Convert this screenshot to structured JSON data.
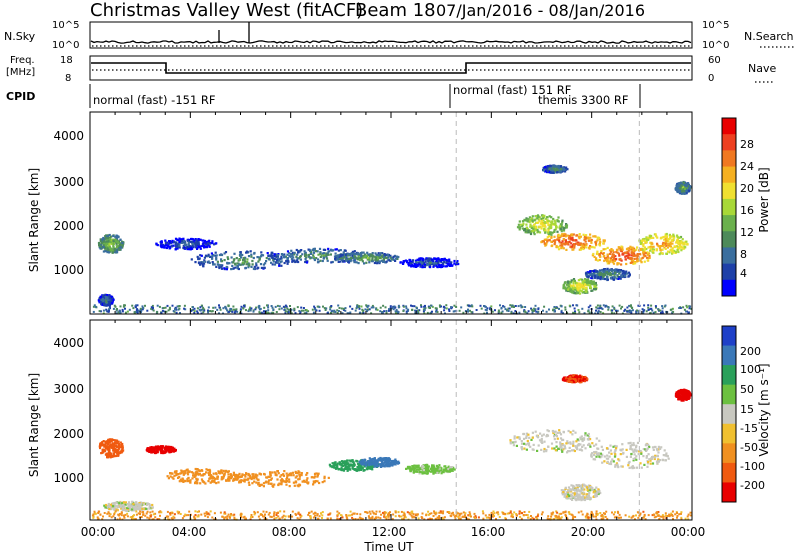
{
  "header": {
    "title": "Christmas Valley West (fitACF)",
    "beam": "Beam 18",
    "date_range": "07/Jan/2016 - 08/Jan/2016"
  },
  "noise_panel": {
    "left_label": "N.Sky",
    "left_ticks": [
      "10^5",
      "10^0"
    ],
    "right_label": "N.Search",
    "right_ticks": [
      "10^5",
      "10^0"
    ]
  },
  "freq_panel": {
    "left_label_line1": "Freq.",
    "left_label_line2": "[MHz]",
    "left_ticks": [
      "18",
      "8"
    ],
    "right_label": "Nave",
    "right_ticks": [
      "60",
      "0"
    ]
  },
  "cpid": {
    "label": "CPID",
    "segments": [
      {
        "start": 0.0,
        "end": 14.6,
        "text": "normal (fast) -151 RF"
      },
      {
        "start": 14.6,
        "end": 21.9,
        "text": "normal (fast) 151 RF"
      },
      {
        "start": 14.6,
        "end": 21.9,
        "text": "themis 3300 RF"
      }
    ]
  },
  "xaxis": {
    "label": "Time UT",
    "ticks": [
      "00:00",
      "04:00",
      "08:00",
      "12:00",
      "16:00",
      "20:00",
      "00:00"
    ]
  },
  "yaxis": {
    "label": "Slant Range [km]",
    "ticks": [
      "1000",
      "2000",
      "3000",
      "4000"
    ]
  },
  "power_scale": {
    "label": "Power [dB]",
    "ticks": [
      "4",
      "8",
      "12",
      "16",
      "20",
      "24",
      "28"
    ],
    "colors": [
      "#0000ff",
      "#1e40a8",
      "#3a6e9e",
      "#4d8a5a",
      "#6ab04c",
      "#a8d838",
      "#f0e030",
      "#f5b020",
      "#f07820",
      "#ee4020",
      "#e80000"
    ]
  },
  "velocity_scale": {
    "label": "Velocity [m s⁻¹]",
    "ticks": [
      "200",
      "100",
      "50",
      "15",
      "-15",
      "-50",
      "-100",
      "-200"
    ],
    "colors": [
      "#1e40c8",
      "#3a78b8",
      "#2aa05a",
      "#6cc040",
      "#c8c8c0",
      "#f0c030",
      "#f09020",
      "#f05a10",
      "#e80000"
    ]
  },
  "chart_data": {
    "type": "heatmap",
    "x_range_hours": [
      0,
      24
    ],
    "y_range_km": [
      180,
      4500
    ],
    "mode_change_times_hours": [
      14.6,
      21.9
    ],
    "power_blobs": [
      {
        "t": 0.8,
        "r": 1700,
        "dt": 0.5,
        "dr": 200,
        "db": 16
      },
      {
        "t": 0.6,
        "r": 500,
        "dt": 0.3,
        "dr": 120,
        "db": 10
      },
      {
        "t": 3.8,
        "r": 1700,
        "dt": 1.2,
        "dr": 120,
        "db": 8
      },
      {
        "t": 6.0,
        "r": 1350,
        "dt": 2.0,
        "dr": 200,
        "db": 12
      },
      {
        "t": 9.0,
        "r": 1450,
        "dt": 2.0,
        "dr": 150,
        "db": 12
      },
      {
        "t": 11.0,
        "r": 1400,
        "dt": 1.3,
        "dr": 120,
        "db": 14
      },
      {
        "t": 13.5,
        "r": 1300,
        "dt": 1.2,
        "dr": 100,
        "db": 8
      },
      {
        "t": 18.0,
        "r": 2100,
        "dt": 1.0,
        "dr": 220,
        "db": 20
      },
      {
        "t": 19.2,
        "r": 1750,
        "dt": 1.3,
        "dr": 180,
        "db": 28
      },
      {
        "t": 21.2,
        "r": 1450,
        "dt": 1.2,
        "dr": 200,
        "db": 28
      },
      {
        "t": 22.8,
        "r": 1700,
        "dt": 1.0,
        "dr": 220,
        "db": 24
      },
      {
        "t": 19.5,
        "r": 800,
        "dt": 0.7,
        "dr": 160,
        "db": 20
      },
      {
        "t": 20.6,
        "r": 1050,
        "dt": 0.9,
        "dr": 120,
        "db": 12
      },
      {
        "t": 23.6,
        "r": 2900,
        "dt": 0.3,
        "dr": 130,
        "db": 14
      },
      {
        "t": 18.5,
        "r": 3300,
        "dt": 0.5,
        "dr": 80,
        "db": 12
      }
    ],
    "ground_scatter_band": {
      "r": 300,
      "dr": 90,
      "db": 8
    },
    "velocity_blobs": [
      {
        "t": 0.8,
        "r": 1750,
        "dt": 0.5,
        "dr": 200,
        "v": -100
      },
      {
        "t": 2.8,
        "r": 1720,
        "dt": 0.6,
        "dr": 80,
        "v": -200
      },
      {
        "t": 4.5,
        "r": 1150,
        "dt": 1.5,
        "dr": 160,
        "v": -50
      },
      {
        "t": 7.5,
        "r": 1100,
        "dt": 2.0,
        "dr": 180,
        "v": -50
      },
      {
        "t": 10.5,
        "r": 1380,
        "dt": 1.0,
        "dr": 120,
        "v": 50
      },
      {
        "t": 11.5,
        "r": 1450,
        "dt": 0.8,
        "dr": 100,
        "v": 100
      },
      {
        "t": 13.5,
        "r": 1300,
        "dt": 1.0,
        "dr": 100,
        "v": 15
      },
      {
        "t": 18.5,
        "r": 1900,
        "dt": 1.8,
        "dr": 250,
        "v": 0
      },
      {
        "t": 21.5,
        "r": 1600,
        "dt": 1.6,
        "dr": 280,
        "v": 0
      },
      {
        "t": 19.5,
        "r": 800,
        "dt": 0.8,
        "dr": 180,
        "v": 0
      },
      {
        "t": 23.6,
        "r": 2900,
        "dt": 0.3,
        "dr": 120,
        "v": -200
      },
      {
        "t": 19.3,
        "r": 3250,
        "dt": 0.5,
        "dr": 80,
        "v": -150
      },
      {
        "t": 1.5,
        "r": 500,
        "dt": 1.0,
        "dr": 100,
        "v": 0
      }
    ],
    "velocity_ground_band": {
      "r": 300,
      "dr": 90,
      "v": -50
    }
  }
}
